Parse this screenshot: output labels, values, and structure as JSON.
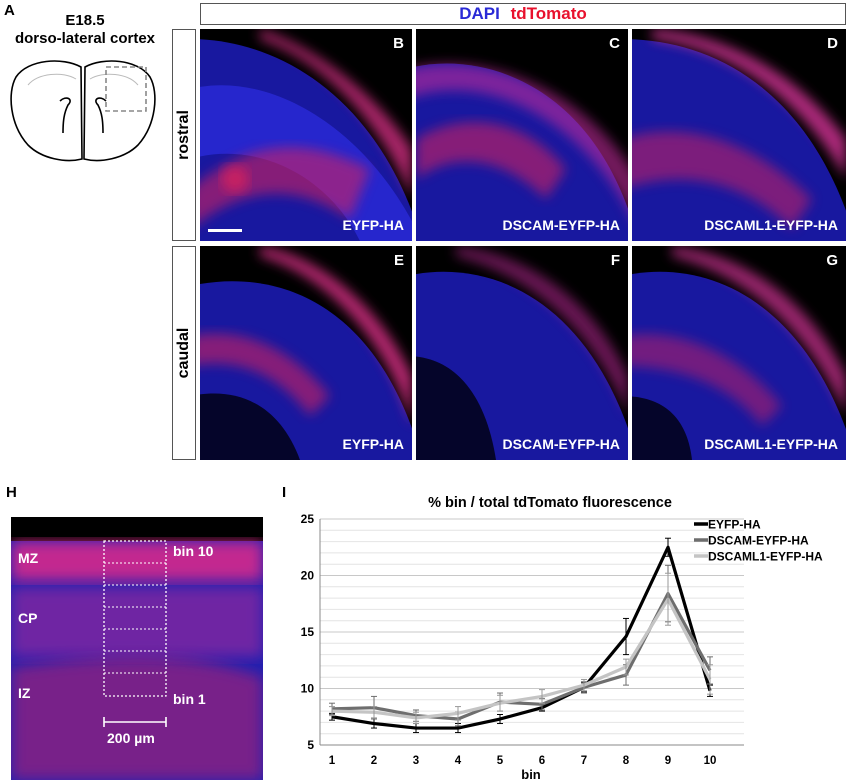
{
  "panel_a": {
    "letter": "A",
    "title_line1": "E18.5",
    "title_line2": "dorso-lateral cortex"
  },
  "stain_legend": {
    "dapi": "DAPI",
    "tdtomato": "tdTomato",
    "dapi_color": "#2a2ad6",
    "tdtomato_color": "#e8112d"
  },
  "rows": {
    "rostral": "rostral",
    "caudal": "caudal"
  },
  "panels": [
    {
      "letter": "B",
      "condition": "EYFP-HA"
    },
    {
      "letter": "C",
      "condition": "DSCAM-EYFP-HA"
    },
    {
      "letter": "D",
      "condition": "DSCAML1-EYFP-HA"
    },
    {
      "letter": "E",
      "condition": "EYFP-HA"
    },
    {
      "letter": "F",
      "condition": "DSCAM-EYFP-HA"
    },
    {
      "letter": "G",
      "condition": "DSCAML1-EYFP-HA"
    }
  ],
  "panel_h": {
    "letter": "H",
    "zones": {
      "mz": "MZ",
      "cp": "CP",
      "iz": "IZ"
    },
    "bin_top": "bin 10",
    "bin_bottom": "bin 1",
    "scale": "200 µm"
  },
  "panel_i": {
    "letter": "I"
  },
  "chart_data": {
    "type": "line",
    "title": "% bin / total tdTomato fluorescence",
    "xlabel": "bin",
    "ylabel": "",
    "x": [
      1,
      2,
      3,
      4,
      5,
      6,
      7,
      8,
      9,
      10
    ],
    "ylim": [
      5,
      25
    ],
    "yticks": [
      5,
      10,
      15,
      20,
      25
    ],
    "grid": true,
    "legend_position": "top-right",
    "series": [
      {
        "name": "EYFP-HA",
        "color": "#000000",
        "values": [
          7.5,
          6.9,
          6.5,
          6.5,
          7.3,
          8.3,
          10.1,
          14.6,
          22.5,
          9.8
        ],
        "errors": [
          0.3,
          0.4,
          0.4,
          0.4,
          0.4,
          0.3,
          0.4,
          1.6,
          0.8,
          0.5
        ]
      },
      {
        "name": "DSCAM-EYFP-HA",
        "color": "#6e6e6e",
        "values": [
          8.2,
          8.3,
          7.6,
          7.3,
          8.8,
          8.6,
          10.1,
          11.2,
          18.4,
          11.6
        ],
        "errors": [
          0.5,
          1.0,
          0.5,
          0.6,
          0.8,
          0.5,
          0.5,
          0.9,
          2.5,
          1.2
        ]
      },
      {
        "name": "DSCAML1-EYFP-HA",
        "color": "#c4c4c4",
        "values": [
          8.0,
          7.9,
          7.4,
          7.8,
          8.7,
          9.3,
          10.3,
          11.9,
          17.9,
          10.8
        ],
        "errors": [
          0.4,
          0.5,
          0.5,
          0.6,
          0.7,
          0.6,
          0.5,
          0.7,
          2.3,
          1.3
        ]
      }
    ]
  }
}
